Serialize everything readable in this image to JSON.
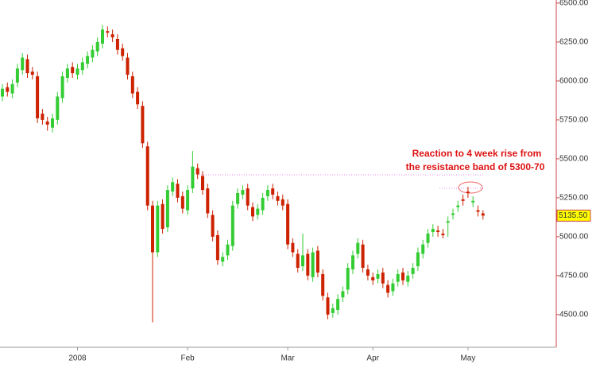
{
  "chart_data": {
    "type": "candlestick",
    "categories": [
      null,
      null,
      null,
      null,
      null,
      null,
      null,
      null,
      null,
      null,
      null,
      null,
      null,
      null,
      null,
      "2008",
      null,
      null,
      null,
      null,
      null,
      null,
      null,
      null,
      null,
      null,
      null,
      null,
      null,
      null,
      null,
      null,
      null,
      null,
      null,
      null,
      null,
      "Feb",
      null,
      null,
      null,
      null,
      null,
      null,
      null,
      null,
      null,
      null,
      null,
      null,
      null,
      null,
      null,
      null,
      null,
      null,
      null,
      "Mar",
      null,
      null,
      null,
      null,
      null,
      null,
      null,
      null,
      null,
      null,
      null,
      null,
      null,
      null,
      null,
      null,
      "Apr",
      null,
      null,
      null,
      null,
      null,
      null,
      null,
      null,
      null,
      null,
      null,
      null,
      null,
      null,
      null,
      null,
      null,
      null,
      "May",
      null,
      null,
      null
    ],
    "open": [
      5900,
      5960,
      5920,
      5990,
      6070,
      6140,
      6060,
      6030,
      5790,
      5740,
      5700,
      5750,
      5890,
      6020,
      6090,
      6040,
      6070,
      6110,
      6150,
      6190,
      6240,
      6320,
      6300,
      6270,
      6210,
      6150,
      6030,
      5930,
      5840,
      5580,
      5200,
      4900,
      5210,
      5060,
      5290,
      5340,
      5260,
      5170,
      5310,
      5440,
      5390,
      5310,
      5140,
      5010,
      4840,
      4880,
      4940,
      5210,
      5270,
      5310,
      5190,
      5140,
      5170,
      5260,
      5310,
      5260,
      5240,
      5210,
      4960,
      4890,
      4810,
      4890,
      4740,
      4910,
      4760,
      4610,
      4510,
      4530,
      4610,
      4660,
      4790,
      4890,
      4950,
      4790,
      4740,
      4730,
      4770,
      4690,
      4650,
      4710,
      4770,
      4710,
      4760,
      4810,
      4890,
      4960,
      5030,
      5040,
      5020,
      5090,
      5140,
      5190,
      5240,
      5290,
      5220,
      5170,
      5150
    ],
    "high": [
      5980,
      5990,
      6010,
      6110,
      6180,
      6170,
      6090,
      6060,
      5820,
      5770,
      5790,
      5930,
      6060,
      6110,
      6120,
      6110,
      6150,
      6190,
      6230,
      6280,
      6360,
      6350,
      6330,
      6300,
      6240,
      6180,
      6060,
      5960,
      5870,
      5610,
      5230,
      5230,
      5240,
      5330,
      5380,
      5370,
      5290,
      5330,
      5550,
      5470,
      5420,
      5340,
      5170,
      5040,
      4900,
      4980,
      5230,
      5310,
      5330,
      5340,
      5220,
      5210,
      5280,
      5330,
      5340,
      5290,
      5270,
      5240,
      4990,
      4920,
      5020,
      4920,
      4930,
      4940,
      4790,
      4640,
      4570,
      4630,
      4680,
      4830,
      4910,
      4990,
      4980,
      4820,
      4770,
      4790,
      4800,
      4720,
      4730,
      4790,
      4800,
      4780,
      4830,
      4930,
      4980,
      5050,
      5080,
      5070,
      5050,
      5130,
      5180,
      5230,
      5270,
      5320,
      5260,
      5200,
      5170
    ],
    "low": [
      5870,
      5900,
      5890,
      5960,
      6040,
      6020,
      6010,
      5730,
      5720,
      5680,
      5670,
      5720,
      5860,
      5990,
      6020,
      6010,
      6040,
      6080,
      6120,
      6160,
      6210,
      6280,
      6250,
      6170,
      6130,
      6010,
      5890,
      5820,
      5570,
      5170,
      4450,
      4870,
      5020,
      5030,
      5260,
      5220,
      5150,
      5140,
      5280,
      5370,
      5270,
      5120,
      4970,
      4820,
      4810,
      4850,
      4910,
      5180,
      5240,
      5170,
      5100,
      5110,
      5140,
      5230,
      5240,
      5200,
      5170,
      4920,
      4870,
      4770,
      4780,
      4720,
      4710,
      4740,
      4590,
      4470,
      4480,
      4500,
      4580,
      4630,
      4760,
      4860,
      4770,
      4720,
      4690,
      4700,
      4670,
      4610,
      4620,
      4680,
      4690,
      4680,
      4730,
      4780,
      4860,
      4930,
      5000,
      5000,
      4990,
      5000,
      5110,
      5160,
      5200,
      5250,
      5190,
      5130,
      5110
    ],
    "close": [
      5950,
      5930,
      5980,
      6080,
      6150,
      6050,
      6040,
      5760,
      5750,
      5720,
      5760,
      5900,
      6030,
      6080,
      6050,
      6080,
      6120,
      6160,
      6200,
      6250,
      6330,
      6310,
      6280,
      6200,
      6160,
      6040,
      5920,
      5850,
      5600,
      5200,
      4900,
      5200,
      5050,
      5300,
      5350,
      5250,
      5180,
      5300,
      5450,
      5400,
      5300,
      5150,
      5000,
      4850,
      4870,
      4950,
      5200,
      5280,
      5300,
      5200,
      5130,
      5180,
      5250,
      5300,
      5270,
      5230,
      5200,
      4950,
      4900,
      4800,
      4880,
      4750,
      4900,
      4770,
      4620,
      4500,
      4540,
      4600,
      4650,
      4800,
      4880,
      4960,
      4800,
      4750,
      4720,
      4760,
      4700,
      4640,
      4700,
      4760,
      4720,
      4750,
      4800,
      4900,
      4950,
      5020,
      5050,
      5030,
      5010,
      5100,
      5150,
      5200,
      5230,
      5280,
      5230,
      5160,
      5135.5
    ],
    "up_color": "#33cc33",
    "down_color": "#cc2200",
    "last_value": {
      "value": 5135.5,
      "label": "5135.50"
    },
    "annotation": [
      "Reaction to 4 week rise from",
      "the resistance band of 5300-70"
    ],
    "ylim": [
      4290,
      6520
    ],
    "yticks": [
      {
        "value": 4500,
        "label": "4500.00"
      },
      {
        "value": 4750,
        "label": "4750.00"
      },
      {
        "value": 5000,
        "label": "5000.00"
      },
      {
        "value": 5250,
        "label": "5250.00"
      },
      {
        "value": 5500,
        "label": "5500.00"
      },
      {
        "value": 5750,
        "label": "5750.00"
      },
      {
        "value": 6000,
        "label": "6000.00"
      },
      {
        "value": 6250,
        "label": "6250.00"
      },
      {
        "value": 6500,
        "label": "6500.00"
      }
    ]
  }
}
